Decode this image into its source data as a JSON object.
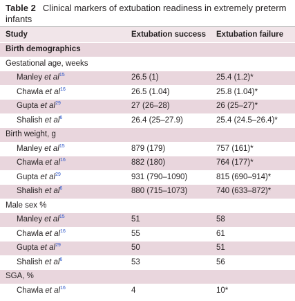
{
  "table": {
    "label": "Table 2",
    "caption": "Clinical markers of extubation readiness in extremely preterm infants",
    "columns": [
      "Study",
      "Extubation success",
      "Extubation failure"
    ],
    "sections": [
      {
        "title": "Birth demographics",
        "groups": [
          {
            "label": "Gestational age, weeks",
            "rows": [
              {
                "author": "Manley",
                "etal": "et al",
                "ref": "15",
                "success": "26.5 (1)",
                "failure": "25.4 (1.2)*"
              },
              {
                "author": "Chawla",
                "etal": "et al",
                "ref": "16",
                "success": "26.5 (1.04)",
                "failure": "25.8 (1.04)*"
              },
              {
                "author": "Gupta",
                "etal": "et al",
                "ref": "29",
                "success": "27 (26–28)",
                "failure": "26 (25–27)*"
              },
              {
                "author": "Shalish",
                "etal": "et al",
                "ref": "6",
                "success": "26.4 (25–27.9)",
                "failure": "25.4 (24.5–26.4)*"
              }
            ]
          },
          {
            "label": "Birth weight, g",
            "rows": [
              {
                "author": "Manley",
                "etal": "et al",
                "ref": "15",
                "success": "879 (179)",
                "failure": "757 (161)*"
              },
              {
                "author": "Chawla",
                "etal": "et al",
                "ref": "16",
                "success": "882 (180)",
                "failure": "764 (177)*"
              },
              {
                "author": "Gupta",
                "etal": "et al",
                "ref": "29",
                "success": "931 (790–1090)",
                "failure": "815 (690–914)*"
              },
              {
                "author": "Shalish",
                "etal": "et al",
                "ref": "6",
                "success": "880 (715–1073)",
                "failure": "740 (633–872)*"
              }
            ]
          },
          {
            "label": "Male sex %",
            "rows": [
              {
                "author": "Manley",
                "etal": "et al",
                "ref": "15",
                "success": "51",
                "failure": "58"
              },
              {
                "author": "Chawla",
                "etal": "et al",
                "ref": "16",
                "success": "55",
                "failure": "61"
              },
              {
                "author": "Gupta",
                "etal": "et al",
                "ref": "29",
                "success": "50",
                "failure": "51"
              },
              {
                "author": "Shalish",
                "etal": "et al",
                "ref": "6",
                "success": "53",
                "failure": "56"
              }
            ]
          },
          {
            "label": "SGA, %",
            "rows": [
              {
                "author": "Chawla",
                "etal": "et al",
                "ref": "16",
                "success": "4",
                "failure": "10*"
              }
            ]
          }
        ]
      }
    ]
  }
}
